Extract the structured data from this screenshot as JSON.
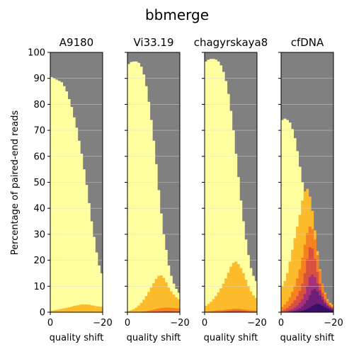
{
  "chart_data": {
    "type": "area",
    "title": "bbmerge",
    "ylabel": "Percentage of paired-end reads",
    "ylim": [
      0,
      100
    ],
    "yticks": [
      "0",
      "10",
      "20",
      "30",
      "40",
      "50",
      "60",
      "70",
      "80",
      "90",
      "100"
    ],
    "colors": {
      "background": "#808080",
      "top_band": "#ffff9f",
      "band_1": "#fcbb2a",
      "band_2": "#f7811f",
      "band_3": "#d9513f",
      "band_4": "#a6307a",
      "band_5": "#6f1f78",
      "band_6": "#3a0f6b"
    },
    "panels": [
      {
        "name": "A9180",
        "xlabel": "quality shift",
        "xticks": [
          "0",
          "−20"
        ],
        "x": [
          0,
          -1,
          -2,
          -3,
          -4,
          -5,
          -6,
          -7,
          -8,
          -9,
          -10,
          -11,
          -12,
          -13,
          -14,
          -15,
          -16,
          -17,
          -18,
          -19,
          -20
        ],
        "bands": [
          [
            90.5,
            90,
            89.5,
            89,
            88.5,
            87,
            85,
            82,
            79,
            75,
            71,
            66,
            61,
            55,
            49,
            42,
            35,
            29,
            23,
            18,
            15
          ],
          [
            0.5,
            0.7,
            0.9,
            1.1,
            1.3,
            1.5,
            1.7,
            1.9,
            2.1,
            2.4,
            2.6,
            2.8,
            3.0,
            3.0,
            3.0,
            2.9,
            2.7,
            2.5,
            2.3,
            2.2,
            2.1
          ]
        ]
      },
      {
        "name": "Vi33.19",
        "xlabel": "quality shift",
        "xticks": [
          "0",
          "−20"
        ],
        "x": [
          0,
          -1,
          -2,
          -3,
          -4,
          -5,
          -6,
          -7,
          -8,
          -9,
          -10,
          -11,
          -12,
          -13,
          -14,
          -15,
          -16,
          -17,
          -18,
          -19,
          -20
        ],
        "bands": [
          [
            95.5,
            96.3,
            96.5,
            96.5,
            96,
            94.5,
            91.5,
            87,
            81,
            74,
            66,
            57,
            47,
            38,
            30,
            24,
            18,
            14,
            11,
            9,
            7.5
          ],
          [
            0.5,
            0.8,
            1.2,
            1.8,
            2.6,
            3.6,
            4.8,
            6.2,
            7.8,
            9.5,
            11.2,
            12.8,
            14,
            14.2,
            13.2,
            11.5,
            9.5,
            8,
            6.8,
            5.8,
            5
          ],
          [
            0,
            0,
            0,
            0,
            0.1,
            0.2,
            0.3,
            0.4,
            0.6,
            0.8,
            1.0,
            1.2,
            1.4,
            1.6,
            1.7,
            1.8,
            1.8,
            1.7,
            1.6,
            1.5,
            1.4
          ],
          [
            0,
            0,
            0,
            0,
            0,
            0,
            0,
            0,
            0.1,
            0.1,
            0.2,
            0.2,
            0.3,
            0.3,
            0.4,
            0.4,
            0.4,
            0.4,
            0.3,
            0.3,
            0.3
          ]
        ]
      },
      {
        "name": "chagyrskaya8",
        "xlabel": "quality shift",
        "xticks": [
          "0",
          "−20"
        ],
        "x": [
          0,
          -1,
          -2,
          -3,
          -4,
          -5,
          -6,
          -7,
          -8,
          -9,
          -10,
          -11,
          -12,
          -13,
          -14,
          -15,
          -16,
          -17,
          -18,
          -19,
          -20
        ],
        "bands": [
          [
            96.5,
            97.2,
            97.5,
            97.5,
            97.2,
            96.5,
            95,
            92.5,
            89,
            84,
            77.5,
            70,
            61,
            52,
            43,
            35,
            28,
            22,
            17,
            14,
            12
          ],
          [
            2.5,
            3.2,
            4.0,
            5.0,
            6.2,
            7.6,
            9.2,
            11,
            13,
            15.2,
            17.5,
            19,
            19.5,
            18.5,
            17,
            15,
            12.5,
            10,
            8,
            6.5,
            5.5
          ],
          [
            0.2,
            0.3,
            0.4,
            0.5,
            0.6,
            0.7,
            0.8,
            0.9,
            1.0,
            1.1,
            1.2,
            1.3,
            1.3,
            1.3,
            1.2,
            1.1,
            1.0,
            0.9,
            0.8,
            0.7,
            0.6
          ],
          [
            0,
            0,
            0,
            0,
            0.1,
            0.1,
            0.2,
            0.3,
            0.4,
            0.5,
            0.6,
            0.7,
            0.7,
            0.7,
            0.6,
            0.5,
            0.4,
            0.3,
            0.2,
            0.2,
            0.1
          ]
        ]
      },
      {
        "name": "cfDNA",
        "xlabel": "quality shift",
        "xticks": [
          "0",
          "−20"
        ],
        "x": [
          0,
          -1,
          -2,
          -3,
          -4,
          -5,
          -6,
          -7,
          -8,
          -9,
          -10,
          -11,
          -12,
          -13,
          -14,
          -15,
          -16,
          -17,
          -18,
          -19,
          -20
        ],
        "bands": [
          [
            74,
            74.5,
            74,
            73,
            70.5,
            67,
            62,
            56,
            50,
            44,
            38,
            32,
            26,
            20.5,
            15.5,
            11.5,
            8.5,
            6.2,
            4.6,
            3.5,
            3
          ],
          [
            10,
            12,
            15,
            19.5,
            24,
            28.5,
            33,
            37.5,
            43,
            46.5,
            47.5,
            44.5,
            39,
            31.5,
            23.5,
            16.5,
            11,
            7.5,
            5,
            3.6,
            3
          ],
          [
            2,
            3,
            4.2,
            5.8,
            7.8,
            10,
            13,
            16.5,
            21,
            26,
            30.5,
            33,
            32,
            28,
            22,
            16,
            11,
            7,
            4.5,
            3,
            2.2
          ],
          [
            0.5,
            1,
            1.6,
            2.4,
            3.4,
            4.6,
            6.2,
            8.2,
            11,
            15,
            20.5,
            25,
            24.5,
            20.5,
            15.5,
            11,
            7.5,
            5,
            3.5,
            2.5,
            1.8
          ],
          [
            0,
            0.2,
            0.4,
            0.8,
            1.2,
            1.8,
            2.6,
            3.6,
            5,
            7,
            10,
            13.5,
            14.5,
            13.5,
            11,
            8.5,
            6,
            4,
            2.8,
            2,
            1.5
          ],
          [
            0,
            0,
            0.1,
            0.2,
            0.4,
            0.6,
            1,
            1.5,
            2.2,
            3.2,
            4.6,
            6.5,
            8.5,
            9,
            8,
            6.5,
            4.8,
            3.4,
            2.4,
            1.7,
            1.2
          ],
          [
            0,
            0,
            0,
            0,
            0.1,
            0.2,
            0.3,
            0.4,
            0.6,
            0.9,
            1.3,
            1.8,
            2.4,
            2.9,
            3.2,
            3.0,
            2.5,
            1.9,
            1.4,
            1.0,
            0.7
          ]
        ]
      }
    ],
    "grid": true,
    "legend": "none"
  }
}
